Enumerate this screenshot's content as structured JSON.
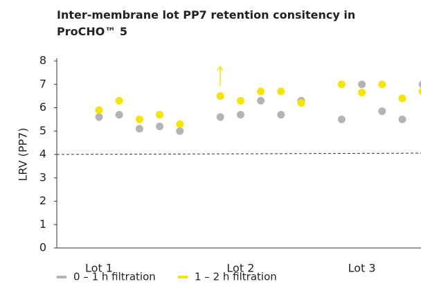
{
  "chart_data": {
    "type": "scatter",
    "title": "Inter-membrane lot PP7 retention consitency in ProCHO™ 5",
    "y_label": "LRV (PP7)",
    "categories": [
      "Lot 1",
      null,
      null,
      null,
      null,
      null,
      null,
      "Lot 2",
      null,
      null,
      null,
      null,
      null,
      "Lot 3",
      null,
      null,
      null
    ],
    "series": [
      {
        "name": "0 – 1 h filtration",
        "color": "#b4b4b4",
        "values": [
          5.6,
          5.7,
          5.1,
          5.2,
          5.0,
          null,
          5.6,
          5.7,
          6.3,
          5.7,
          6.3,
          null,
          5.5,
          7.0,
          5.85,
          5.5,
          7.0
        ]
      },
      {
        "name": "1 – 2 h filtration",
        "color": "#f7e400",
        "values": [
          5.9,
          6.3,
          5.5,
          5.7,
          5.3,
          null,
          6.5,
          6.3,
          6.7,
          6.7,
          6.2,
          null,
          7.0,
          6.65,
          7.0,
          6.4,
          6.7
        ]
      }
    ],
    "reference_line": 4,
    "ylim": [
      0,
      8
    ],
    "yticks": [
      0,
      1,
      2,
      3,
      4,
      5,
      6,
      7,
      8
    ]
  }
}
